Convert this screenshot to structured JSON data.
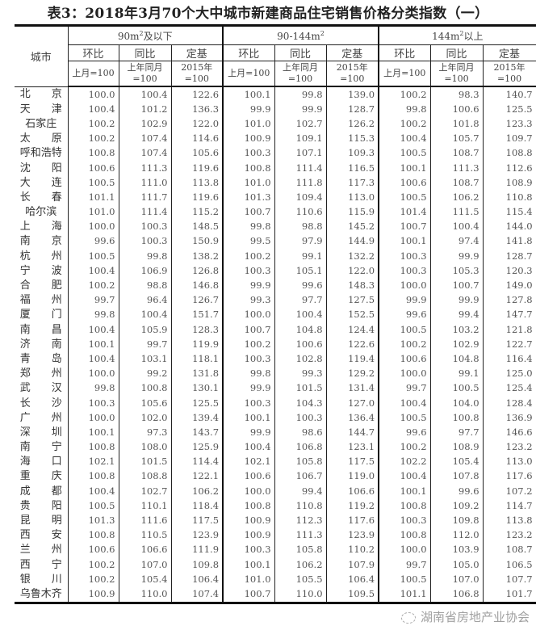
{
  "title": "表3：2018年3月70个大中城市新建商品住宅销售价格分类指数（一）",
  "header": {
    "city": "城市",
    "groups": [
      {
        "pre": "90m",
        "sup": "2",
        "post": "及以下"
      },
      {
        "pre": "90-144m",
        "sup": "2",
        "post": ""
      },
      {
        "pre": "144m",
        "sup": "2",
        "post": "以上"
      }
    ],
    "sub": [
      "环比",
      "同比",
      "定基"
    ],
    "units": [
      "上月=100",
      "上年同月=100",
      "2015年=100"
    ]
  },
  "rows": [
    {
      "city": "北　　京",
      "v": [
        "100.0",
        "100.4",
        "122.6",
        "100.1",
        "99.8",
        "139.0",
        "100.2",
        "98.3",
        "140.7"
      ]
    },
    {
      "city": "天　　津",
      "v": [
        "100.4",
        "101.2",
        "136.3",
        "99.9",
        "99.9",
        "128.7",
        "99.8",
        "100.6",
        "125.5"
      ]
    },
    {
      "city": "石家庄",
      "v": [
        "100.2",
        "102.9",
        "122.0",
        "101.0",
        "102.7",
        "126.2",
        "100.2",
        "101.8",
        "123.3"
      ]
    },
    {
      "city": "太　　原",
      "v": [
        "100.2",
        "107.4",
        "114.6",
        "100.9",
        "109.1",
        "115.3",
        "100.4",
        "105.7",
        "109.7"
      ]
    },
    {
      "city": "呼和浩特",
      "v": [
        "100.8",
        "107.4",
        "105.6",
        "100.3",
        "107.1",
        "109.3",
        "100.5",
        "108.7",
        "108.8"
      ]
    },
    {
      "city": "沈　　阳",
      "v": [
        "100.6",
        "111.3",
        "119.6",
        "100.8",
        "111.4",
        "116.5",
        "100.1",
        "111.3",
        "112.6"
      ]
    },
    {
      "city": "大　　连",
      "v": [
        "100.5",
        "111.0",
        "113.8",
        "101.0",
        "111.8",
        "117.3",
        "100.6",
        "108.7",
        "108.9"
      ]
    },
    {
      "city": "长　　春",
      "v": [
        "101.1",
        "111.7",
        "119.6",
        "101.3",
        "109.4",
        "113.0",
        "100.5",
        "106.2",
        "110.8"
      ]
    },
    {
      "city": "哈尔滨",
      "v": [
        "101.0",
        "111.4",
        "115.2",
        "100.7",
        "110.6",
        "115.9",
        "101.4",
        "111.5",
        "115.4"
      ]
    },
    {
      "city": "上　　海",
      "v": [
        "100.0",
        "100.3",
        "148.5",
        "99.8",
        "98.8",
        "145.2",
        "100.7",
        "100.4",
        "144.0"
      ]
    },
    {
      "city": "南　　京",
      "v": [
        "99.6",
        "100.3",
        "150.9",
        "99.5",
        "97.9",
        "144.9",
        "100.1",
        "97.4",
        "141.8"
      ]
    },
    {
      "city": "杭　　州",
      "v": [
        "100.5",
        "99.8",
        "138.2",
        "100.2",
        "99.1",
        "132.2",
        "100.3",
        "99.9",
        "128.7"
      ]
    },
    {
      "city": "宁　　波",
      "v": [
        "100.4",
        "106.9",
        "126.8",
        "100.3",
        "105.1",
        "122.0",
        "100.3",
        "105.3",
        "120.3"
      ]
    },
    {
      "city": "合　　肥",
      "v": [
        "100.2",
        "98.8",
        "146.8",
        "99.9",
        "99.6",
        "148.3",
        "100.0",
        "100.7",
        "149.0"
      ]
    },
    {
      "city": "福　　州",
      "v": [
        "99.7",
        "96.4",
        "126.7",
        "99.3",
        "97.7",
        "127.5",
        "99.9",
        "99.9",
        "127.8"
      ]
    },
    {
      "city": "厦　　门",
      "v": [
        "99.8",
        "100.4",
        "151.7",
        "100.0",
        "100.4",
        "152.5",
        "99.6",
        "99.4",
        "147.7"
      ]
    },
    {
      "city": "南　　昌",
      "v": [
        "100.4",
        "105.9",
        "128.3",
        "100.7",
        "104.8",
        "124.4",
        "100.5",
        "103.2",
        "121.8"
      ]
    },
    {
      "city": "济　　南",
      "v": [
        "100.1",
        "99.7",
        "119.9",
        "100.2",
        "100.6",
        "122.6",
        "100.2",
        "102.9",
        "122.7"
      ]
    },
    {
      "city": "青　　岛",
      "v": [
        "100.4",
        "103.1",
        "118.1",
        "100.3",
        "102.8",
        "119.4",
        "100.6",
        "104.8",
        "116.4"
      ]
    },
    {
      "city": "郑　　州",
      "v": [
        "100.0",
        "99.2",
        "131.8",
        "99.8",
        "99.3",
        "129.2",
        "100.0",
        "99.1",
        "125.0"
      ]
    },
    {
      "city": "武　　汉",
      "v": [
        "99.8",
        "100.8",
        "130.1",
        "99.9",
        "101.5",
        "131.4",
        "99.7",
        "100.5",
        "125.4"
      ]
    },
    {
      "city": "长　　沙",
      "v": [
        "100.3",
        "105.6",
        "125.5",
        "100.3",
        "104.3",
        "127.0",
        "100.4",
        "104.0",
        "128.4"
      ]
    },
    {
      "city": "广　　州",
      "v": [
        "100.0",
        "102.0",
        "139.4",
        "100.1",
        "100.3",
        "136.4",
        "100.5",
        "100.8",
        "136.9"
      ]
    },
    {
      "city": "深　　圳",
      "v": [
        "100.1",
        "97.3",
        "143.7",
        "99.9",
        "98.6",
        "144.7",
        "99.6",
        "97.7",
        "146.6"
      ]
    },
    {
      "city": "南　　宁",
      "v": [
        "100.8",
        "108.0",
        "125.9",
        "100.4",
        "106.8",
        "123.1",
        "100.2",
        "108.9",
        "123.2"
      ]
    },
    {
      "city": "海　　口",
      "v": [
        "102.1",
        "101.5",
        "114.4",
        "102.1",
        "105.8",
        "117.5",
        "102.2",
        "105.4",
        "113.0"
      ]
    },
    {
      "city": "重　　庆",
      "v": [
        "100.8",
        "108.8",
        "122.1",
        "100.6",
        "106.7",
        "119.0",
        "100.4",
        "107.8",
        "117.6"
      ]
    },
    {
      "city": "成　　都",
      "v": [
        "100.4",
        "102.7",
        "106.2",
        "100.0",
        "99.4",
        "106.6",
        "100.1",
        "99.6",
        "107.2"
      ]
    },
    {
      "city": "贵　　阳",
      "v": [
        "100.5",
        "110.1",
        "118.4",
        "100.8",
        "110.8",
        "119.2",
        "100.8",
        "109.2",
        "114.7"
      ]
    },
    {
      "city": "昆　　明",
      "v": [
        "101.3",
        "111.6",
        "117.5",
        "100.9",
        "112.3",
        "117.6",
        "100.3",
        "109.8",
        "113.8"
      ]
    },
    {
      "city": "西　　安",
      "v": [
        "100.8",
        "110.5",
        "123.9",
        "100.9",
        "111.3",
        "123.9",
        "100.8",
        "112.0",
        "123.2"
      ]
    },
    {
      "city": "兰　　州",
      "v": [
        "100.6",
        "106.6",
        "111.9",
        "100.3",
        "105.8",
        "110.2",
        "100.0",
        "103.9",
        "108.7"
      ]
    },
    {
      "city": "西　　宁",
      "v": [
        "100.2",
        "107.0",
        "109.8",
        "100.1",
        "106.2",
        "107.9",
        "99.7",
        "105.0",
        "106.5"
      ]
    },
    {
      "city": "银　　川",
      "v": [
        "100.2",
        "105.4",
        "106.4",
        "101.0",
        "105.5",
        "106.4",
        "100.5",
        "107.0",
        "107.7"
      ]
    },
    {
      "city": "乌鲁木齐",
      "v": [
        "100.9",
        "110.0",
        "107.4",
        "100.7",
        "110.0",
        "109.5",
        "101.1",
        "106.8",
        "101.7"
      ]
    }
  ],
  "watermark": "湖南省房地产业协会"
}
